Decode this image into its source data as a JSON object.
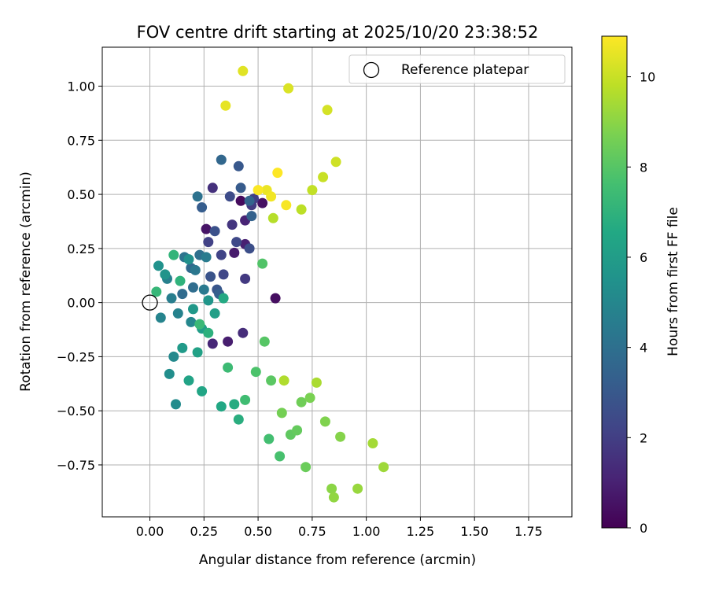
{
  "chart_data": {
    "type": "scatter",
    "title": "FOV centre drift starting at 2025/10/20 23:38:52",
    "xlabel": "Angular distance from reference (arcmin)",
    "ylabel": "Rotation from reference (arcmin)",
    "xlim": [
      -0.22,
      1.95
    ],
    "ylim": [
      -0.99,
      1.18
    ],
    "xticks": [
      "0.00",
      "0.25",
      "0.50",
      "0.75",
      "1.00",
      "1.25",
      "1.50",
      "1.75"
    ],
    "xtick_values": [
      0,
      0.25,
      0.5,
      0.75,
      1.0,
      1.25,
      1.5,
      1.75
    ],
    "yticks": [
      "1.00",
      "0.75",
      "0.50",
      "0.25",
      "0.00",
      "−0.25",
      "−0.50",
      "−0.75"
    ],
    "ytick_values": [
      1.0,
      0.75,
      0.5,
      0.25,
      0.0,
      -0.25,
      -0.5,
      -0.75
    ],
    "grid": true,
    "legend": {
      "placement": "top-right",
      "entries": [
        {
          "label": "Reference platepar",
          "marker": "open-circle"
        }
      ]
    },
    "reference_point": {
      "x": 0.0,
      "y": 0.0
    },
    "colorbar": {
      "label": "Hours from first FF file",
      "colormap": "viridis",
      "range": [
        0,
        10.9
      ],
      "ticks": [
        "0",
        "2",
        "4",
        "6",
        "8",
        "10"
      ],
      "tick_values": [
        0,
        2,
        4,
        6,
        8,
        10
      ]
    },
    "series": [
      {
        "columns": [
          "x",
          "y",
          "hours"
        ],
        "points": [
          [
            0.42,
            0.47,
            0.3
          ],
          [
            0.58,
            0.02,
            0.4
          ],
          [
            0.26,
            0.34,
            0.6
          ],
          [
            0.39,
            0.23,
            0.8
          ],
          [
            0.52,
            0.46,
            0.5
          ],
          [
            0.36,
            -0.18,
            0.9
          ],
          [
            0.44,
            0.27,
            1.0
          ],
          [
            0.44,
            0.38,
            1.1
          ],
          [
            0.29,
            -0.19,
            1.2
          ],
          [
            0.43,
            -0.14,
            1.4
          ],
          [
            0.29,
            0.53,
            1.5
          ],
          [
            0.38,
            0.36,
            1.7
          ],
          [
            0.44,
            0.11,
            1.8
          ],
          [
            0.47,
            0.45,
            1.9
          ],
          [
            0.48,
            0.48,
            2.0
          ],
          [
            0.27,
            0.28,
            2.1
          ],
          [
            0.33,
            0.22,
            2.2
          ],
          [
            0.34,
            0.13,
            2.3
          ],
          [
            0.4,
            0.28,
            2.4
          ],
          [
            0.37,
            0.49,
            2.5
          ],
          [
            0.46,
            0.25,
            2.6
          ],
          [
            0.3,
            0.33,
            2.7
          ],
          [
            0.28,
            0.12,
            2.8
          ],
          [
            0.31,
            0.06,
            2.9
          ],
          [
            0.41,
            0.63,
            3.0
          ],
          [
            0.42,
            0.53,
            3.1
          ],
          [
            0.24,
            0.44,
            3.2
          ],
          [
            0.32,
            0.04,
            3.3
          ],
          [
            0.47,
            0.4,
            3.4
          ],
          [
            0.46,
            0.47,
            3.5
          ],
          [
            0.33,
            0.66,
            3.6
          ],
          [
            0.19,
            0.16,
            3.7
          ],
          [
            0.15,
            0.04,
            3.8
          ],
          [
            0.2,
            0.07,
            3.9
          ],
          [
            0.23,
            0.22,
            4.0
          ],
          [
            0.22,
            0.49,
            4.1
          ],
          [
            0.16,
            0.21,
            4.2
          ],
          [
            0.21,
            0.15,
            4.3
          ],
          [
            0.25,
            0.06,
            4.4
          ],
          [
            0.26,
            0.21,
            4.5
          ],
          [
            0.1,
            0.02,
            4.6
          ],
          [
            0.08,
            0.11,
            4.7
          ],
          [
            0.13,
            -0.05,
            4.8
          ],
          [
            0.05,
            -0.07,
            4.9
          ],
          [
            0.19,
            -0.09,
            5.0
          ],
          [
            0.11,
            -0.25,
            5.1
          ],
          [
            0.12,
            -0.47,
            5.2
          ],
          [
            0.09,
            -0.33,
            5.3
          ],
          [
            0.18,
            0.2,
            5.4
          ],
          [
            0.04,
            0.17,
            5.5
          ],
          [
            0.07,
            0.13,
            5.6
          ],
          [
            0.27,
            0.01,
            5.7
          ],
          [
            0.2,
            -0.03,
            5.8
          ],
          [
            0.15,
            -0.21,
            5.9
          ],
          [
            0.24,
            -0.12,
            6.0
          ],
          [
            0.3,
            -0.05,
            6.1
          ],
          [
            0.22,
            -0.23,
            6.2
          ],
          [
            0.18,
            -0.36,
            6.3
          ],
          [
            0.24,
            -0.41,
            6.4
          ],
          [
            0.33,
            -0.48,
            6.5
          ],
          [
            0.34,
            0.02,
            6.6
          ],
          [
            0.39,
            -0.47,
            6.7
          ],
          [
            0.41,
            -0.54,
            6.8
          ],
          [
            0.27,
            -0.14,
            6.9
          ],
          [
            0.14,
            0.1,
            7.0
          ],
          [
            0.11,
            0.22,
            7.1
          ],
          [
            0.03,
            0.05,
            7.2
          ],
          [
            0.23,
            -0.1,
            7.3
          ],
          [
            0.36,
            -0.3,
            7.4
          ],
          [
            0.44,
            -0.45,
            7.5
          ],
          [
            0.55,
            -0.63,
            7.6
          ],
          [
            0.6,
            -0.71,
            7.7
          ],
          [
            0.49,
            -0.32,
            7.8
          ],
          [
            0.52,
            0.18,
            7.9
          ],
          [
            0.53,
            -0.18,
            8.0
          ],
          [
            0.56,
            -0.36,
            8.1
          ],
          [
            0.65,
            -0.61,
            8.2
          ],
          [
            0.68,
            -0.59,
            8.3
          ],
          [
            0.72,
            -0.76,
            8.4
          ],
          [
            0.7,
            -0.46,
            8.5
          ],
          [
            0.61,
            -0.51,
            8.6
          ],
          [
            0.74,
            -0.44,
            8.7
          ],
          [
            0.81,
            -0.55,
            8.8
          ],
          [
            0.88,
            -0.62,
            8.9
          ],
          [
            0.84,
            -0.86,
            9.0
          ],
          [
            0.85,
            -0.9,
            9.1
          ],
          [
            0.96,
            -0.86,
            9.2
          ],
          [
            1.08,
            -0.76,
            9.3
          ],
          [
            1.03,
            -0.65,
            9.4
          ],
          [
            0.77,
            -0.37,
            9.5
          ],
          [
            0.62,
            -0.36,
            9.6
          ],
          [
            0.57,
            0.39,
            9.7
          ],
          [
            0.7,
            0.43,
            9.8
          ],
          [
            0.75,
            0.52,
            9.9
          ],
          [
            0.8,
            0.58,
            10.0
          ],
          [
            0.86,
            0.65,
            10.1
          ],
          [
            0.82,
            0.89,
            10.2
          ],
          [
            0.64,
            0.99,
            10.3
          ],
          [
            0.43,
            1.07,
            10.4
          ],
          [
            0.35,
            0.91,
            10.5
          ],
          [
            0.54,
            0.52,
            10.6
          ],
          [
            0.56,
            0.49,
            10.7
          ],
          [
            0.63,
            0.45,
            10.8
          ],
          [
            0.5,
            0.52,
            10.85
          ],
          [
            0.59,
            0.6,
            10.9
          ]
        ]
      }
    ]
  }
}
